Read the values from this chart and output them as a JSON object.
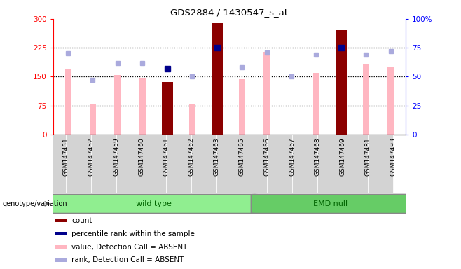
{
  "title": "GDS2884 / 1430547_s_at",
  "samples": [
    "GSM147451",
    "GSM147452",
    "GSM147459",
    "GSM147460",
    "GSM147461",
    "GSM147462",
    "GSM147463",
    "GSM147465",
    "GSM147466",
    "GSM147467",
    "GSM147468",
    "GSM147469",
    "GSM147481",
    "GSM147493"
  ],
  "count_values": [
    null,
    null,
    null,
    null,
    137,
    null,
    288,
    null,
    null,
    null,
    null,
    271,
    null,
    null
  ],
  "percentile_rank_values": [
    null,
    null,
    null,
    null,
    57,
    null,
    75,
    null,
    null,
    null,
    null,
    75,
    null,
    null
  ],
  "value_absent": [
    170,
    78,
    155,
    148,
    null,
    80,
    null,
    144,
    215,
    null,
    160,
    null,
    183,
    175
  ],
  "rank_absent": [
    70,
    47,
    62,
    62,
    null,
    50,
    null,
    58,
    71,
    50,
    69,
    null,
    69,
    72
  ],
  "ylim_left": [
    0,
    300
  ],
  "ylim_right": [
    0,
    100
  ],
  "yticks_left": [
    0,
    75,
    150,
    225,
    300
  ],
  "yticks_right": [
    0,
    25,
    50,
    75,
    100
  ],
  "ytick_labels_left": [
    "0",
    "75",
    "150",
    "225",
    "300"
  ],
  "ytick_labels_right": [
    "0",
    "25",
    "50",
    "75",
    "100%"
  ],
  "hlines": [
    75,
    150,
    225
  ],
  "count_color": "#8B0000",
  "percentile_color": "#00008B",
  "value_absent_color": "#FFB6C1",
  "rank_absent_color": "#AAAADD",
  "wt_color": "#90EE90",
  "emd_color": "#66CC66",
  "group_label_color": "#006400",
  "genotype_label": "genotype/variation",
  "wt_count": 8,
  "emd_count": 6,
  "legend_items": [
    {
      "label": "count",
      "color": "#8B0000"
    },
    {
      "label": "percentile rank within the sample",
      "color": "#00008B"
    },
    {
      "label": "value, Detection Call = ABSENT",
      "color": "#FFB6C1"
    },
    {
      "label": "rank, Detection Call = ABSENT",
      "color": "#AAAADD"
    }
  ]
}
